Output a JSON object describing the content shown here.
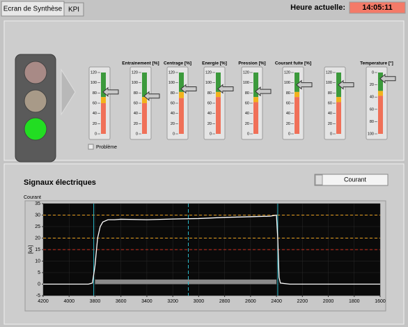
{
  "tabs": [
    "Ecran de Synthèse",
    "KPI"
  ],
  "clock": {
    "label": "Heure actuelle:",
    "time": "14:05:11"
  },
  "gauges": [
    {
      "lim": [
        0,
        120
      ],
      "ticks": [
        120,
        100,
        80,
        60,
        40,
        20,
        0
      ],
      "value": 82,
      "zones": [
        {
          "color": "#3c9a3c",
          "from": 72,
          "to": 120
        },
        {
          "color": "#f2b21c",
          "from": 60,
          "to": 72
        },
        {
          "color": "#f07058",
          "from": 0,
          "to": 60
        }
      ]
    },
    {
      "title": "Entrainement [%]",
      "lim": [
        0,
        120
      ],
      "ticks": [
        120,
        100,
        80,
        60,
        40,
        20,
        0
      ],
      "value": 74,
      "zones": [
        {
          "color": "#3c9a3c",
          "from": 72,
          "to": 120
        },
        {
          "color": "#f2b21c",
          "from": 60,
          "to": 72
        },
        {
          "color": "#f07058",
          "from": 0,
          "to": 60
        }
      ]
    },
    {
      "title": "Centrage [%]",
      "lim": [
        0,
        120
      ],
      "ticks": [
        120,
        100,
        80,
        60,
        40,
        20,
        0
      ],
      "value": 88,
      "zones": [
        {
          "color": "#3c9a3c",
          "from": 82,
          "to": 120
        },
        {
          "color": "#f2b21c",
          "from": 70,
          "to": 82
        },
        {
          "color": "#f07058",
          "from": 0,
          "to": 70
        }
      ]
    },
    {
      "title": "Energie [%]",
      "lim": [
        0,
        120
      ],
      "ticks": [
        120,
        100,
        80,
        60,
        40,
        20,
        0
      ],
      "value": 88,
      "zones": [
        {
          "color": "#3c9a3c",
          "from": 82,
          "to": 120
        },
        {
          "color": "#f2b21c",
          "from": 72,
          "to": 82
        },
        {
          "color": "#f07058",
          "from": 0,
          "to": 72
        }
      ]
    },
    {
      "title": "Pression [%]",
      "lim": [
        0,
        120
      ],
      "ticks": [
        120,
        100,
        80,
        60,
        40,
        20,
        0
      ],
      "value": 83,
      "zones": [
        {
          "color": "#3c9a3c",
          "from": 72,
          "to": 120
        },
        {
          "color": "#f2b21c",
          "from": 62,
          "to": 72
        },
        {
          "color": "#f07058",
          "from": 0,
          "to": 62
        }
      ]
    },
    {
      "title": "Courant fuite [%]",
      "lim": [
        0,
        120
      ],
      "ticks": [
        120,
        100,
        80,
        60,
        40,
        20,
        0
      ],
      "value": 96,
      "zones": [
        {
          "color": "#3c9a3c",
          "from": 82,
          "to": 120
        },
        {
          "color": "#f2b21c",
          "from": 72,
          "to": 82
        },
        {
          "color": "#f07058",
          "from": 0,
          "to": 72
        }
      ]
    },
    {
      "lim": [
        0,
        120
      ],
      "ticks": [
        120,
        100,
        80,
        60,
        40,
        20,
        0
      ],
      "value": 96,
      "zones": [
        {
          "color": "#3c9a3c",
          "from": 72,
          "to": 120
        },
        {
          "color": "#f2b21c",
          "from": 62,
          "to": 72
        },
        {
          "color": "#f07058",
          "from": 0,
          "to": 62
        }
      ]
    },
    {
      "title": "Temperature [°]",
      "lim": [
        100,
        0
      ],
      "ticks": [
        0,
        20,
        40,
        60,
        80,
        100
      ],
      "value": 10,
      "zones": [
        {
          "color": "#3c9a3c",
          "from": 0,
          "to": 30
        },
        {
          "color": "#f2b21c",
          "from": 30,
          "to": 38
        },
        {
          "color": "#f07058",
          "from": 38,
          "to": 100
        }
      ]
    }
  ],
  "checkbox": "Problème",
  "graph": {
    "title": "Signaux électriques",
    "selector": "Courant",
    "y_caption": "Courant",
    "ylabel": "[kA]",
    "xlim": [
      4200,
      1600
    ],
    "ylim": [
      -5,
      35
    ],
    "xticks": [
      4200,
      4000,
      3800,
      3600,
      3400,
      3200,
      3000,
      2800,
      2600,
      2400,
      2200,
      2000,
      1800,
      1600
    ],
    "yticks": [
      -5,
      0,
      5,
      10,
      15,
      20,
      25,
      30,
      35
    ],
    "limits": [
      {
        "value": 30,
        "color": "#e8a020"
      },
      {
        "value": 20,
        "color": "#e8a020"
      },
      {
        "value": 15,
        "color": "#d03020"
      }
    ],
    "cursors": [
      3810,
      3080,
      2390
    ],
    "band": {
      "from": 3800,
      "to": 2400,
      "value": 2
    },
    "series": [
      {
        "color": "#ffffff",
        "x": [
          4200,
          4000,
          3850,
          3820,
          3800,
          3780,
          3760,
          3740,
          3700,
          3650,
          3600,
          3400,
          3200,
          3000,
          2800,
          2600,
          2450,
          2400,
          2390,
          2380,
          2370,
          2300,
          2000,
          1600
        ],
        "values": [
          0,
          0,
          0,
          0.5,
          8,
          20,
          25,
          27,
          28,
          28,
          28.2,
          28,
          28.3,
          28.5,
          29,
          29.3,
          29.5,
          30,
          20,
          3,
          0.5,
          0,
          0,
          0
        ]
      }
    ]
  }
}
